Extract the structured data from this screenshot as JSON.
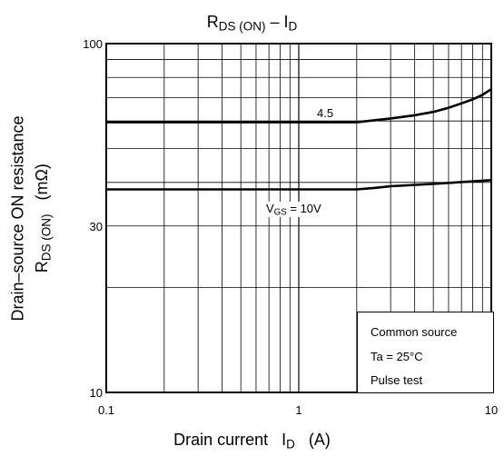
{
  "chart_data": {
    "type": "line",
    "title": {
      "main": "R",
      "sub": "DS (ON)",
      "sep": " – I",
      "sub2": "D"
    },
    "xlabel": {
      "main": "Drain current",
      "sym": "I",
      "sub": "D",
      "unit": "(A)"
    },
    "ylabel": {
      "line1": "Drain–source ON resistance",
      "sym": "R",
      "sub": "DS (ON)",
      "unit": "(mΩ)"
    },
    "x_scale": "log",
    "y_scale": "log",
    "xlim": [
      0.1,
      10
    ],
    "ylim": [
      10,
      100
    ],
    "x_tick_labels": [
      "0.1",
      "1",
      "10"
    ],
    "y_tick_labels": [
      "10",
      "30",
      "100"
    ],
    "x_ticks": [
      0.1,
      1,
      10
    ],
    "y_ticks": [
      10,
      30,
      100
    ],
    "grid": true,
    "series": [
      {
        "name": "4.5",
        "x": [
          0.1,
          0.5,
          1,
          2,
          3,
          4,
          5,
          6,
          7,
          8,
          9,
          10
        ],
        "y": [
          59.5,
          59.5,
          59.5,
          59.5,
          61,
          62.3,
          63.7,
          65.5,
          67.4,
          69.2,
          71.3,
          74
        ]
      },
      {
        "name_parts": {
          "pre": "V",
          "sub": "GS",
          "post": " = 10V"
        },
        "x": [
          0.1,
          0.5,
          1,
          2,
          2.5,
          3,
          5,
          7,
          10
        ],
        "y": [
          38.2,
          38.2,
          38.2,
          38.2,
          38.6,
          39,
          39.6,
          40.1,
          40.6
        ]
      }
    ],
    "annotations": [
      "Common source",
      "Ta = 25°C",
      "Pulse test"
    ]
  }
}
